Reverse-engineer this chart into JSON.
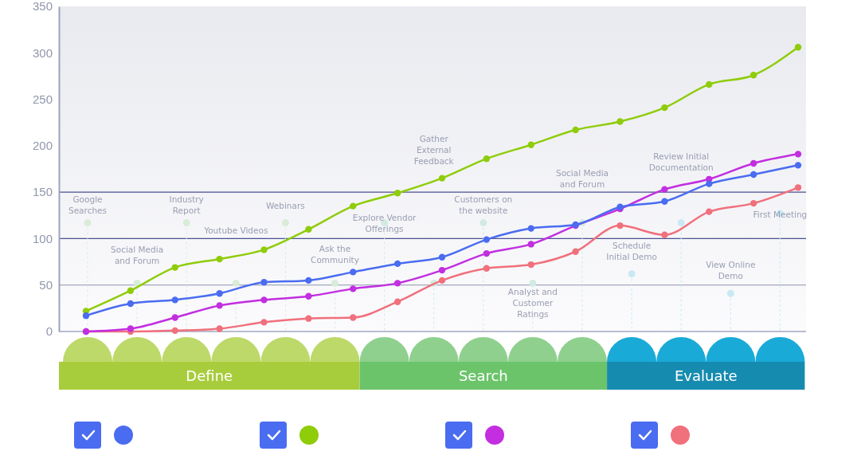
{
  "chart_data": {
    "type": "line",
    "categories": [
      null,
      null,
      null,
      null,
      null,
      null,
      null,
      null,
      null,
      null,
      null,
      null,
      null,
      null,
      null,
      null,
      null
    ],
    "ylim": [
      0,
      350
    ],
    "yticks": [
      0,
      50,
      100,
      150,
      200,
      250,
      300,
      350
    ],
    "tick_labels": "y",
    "marker": "circle",
    "series": [
      {
        "color": "#4a6cf0",
        "values": [
          17,
          30,
          34,
          41,
          53,
          55,
          64,
          73,
          80,
          99,
          111,
          115,
          134,
          140,
          159,
          169,
          179
        ]
      },
      {
        "color": "#8fcc0a",
        "values": [
          22,
          44,
          69,
          78,
          88,
          110,
          135,
          149,
          165,
          186,
          201,
          217,
          226,
          241,
          266,
          276,
          306
        ]
      },
      {
        "color": "#c22ee0",
        "values": [
          0,
          3,
          15,
          28,
          34,
          38,
          46,
          52,
          66,
          84,
          94,
          114,
          132,
          153,
          164,
          181,
          191
        ]
      },
      {
        "color": "#f0707c",
        "values": [
          0,
          0,
          1,
          3,
          10,
          14,
          15,
          32,
          55,
          68,
          72,
          86,
          114,
          104,
          129,
          138,
          155
        ]
      }
    ],
    "ref_lines": [
      {
        "axis": "y",
        "value": 0,
        "color": "#a3a7be"
      },
      {
        "axis": "y",
        "value": 50,
        "color": "#a3a7be"
      },
      {
        "axis": "y",
        "value": 100,
        "color": "#4a5190"
      },
      {
        "axis": "y",
        "value": 150,
        "color": "#4a5190"
      }
    ],
    "annotations": [
      "Google Searches",
      "Social Media and Forum",
      "Industry Report",
      "Youtube Videos",
      "Webinars",
      "Ask the Community",
      "Explore Vendor Offerings",
      "Gather External Feedback",
      "Customers on the website",
      "Analyst and Customer Ratings",
      "Social Media and Forum",
      "Schedule Initial Demo",
      "Review Initial Documentation",
      "View Online Demo",
      "First Meeting",
      "Define",
      "Search",
      "Evaluate"
    ]
  }
}
